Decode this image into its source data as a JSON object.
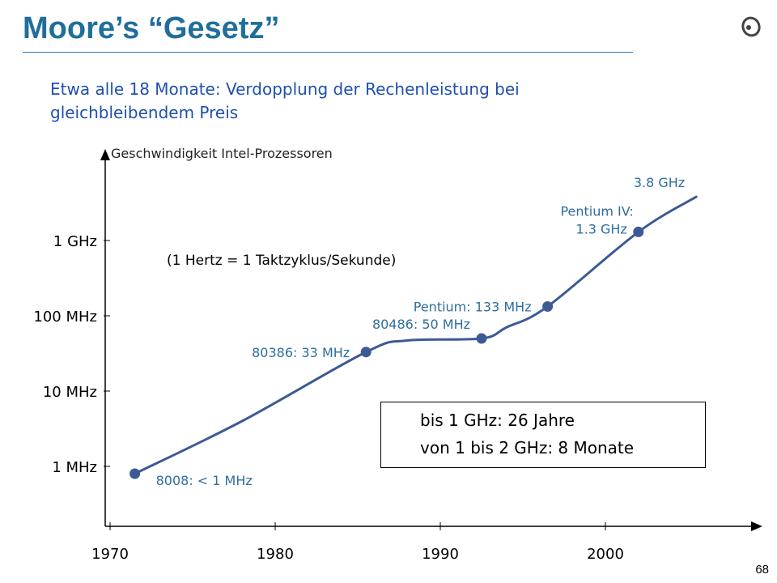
{
  "slide": {
    "title": "Moore’s “Gesetz”",
    "subtitle": "Etwa alle 18 Monate: Verdopplung der Rechenleistung bei gleichbleibendem Preis",
    "note": "(1 Hertz = 1 Taktzyklus/Sekunde)",
    "page_number": "68",
    "info_box": [
      "bis 1 GHz: 26 Jahre",
      "von 1 bis 2 GHz: 8 Monate"
    ],
    "colors": {
      "title": "#1f6f9a",
      "subtitle": "#1f4fb0",
      "curve": "#3c5a96",
      "annotation": "#2e6e9e"
    }
  },
  "chart_data": {
    "type": "line",
    "title": "Geschwindigkeit Intel-Prozessoren",
    "xlabel": "",
    "ylabel": "",
    "x_ticks": [
      "1970",
      "1980",
      "1990",
      "2000"
    ],
    "y_ticks": [
      "1 MHz",
      "10 MHz",
      "100 MHz",
      "1 GHz"
    ],
    "y_scale": "log",
    "xlim": [
      1970,
      2010
    ],
    "ylim_mhz": [
      0.1,
      10000
    ],
    "grid": false,
    "legend": "none",
    "curve": {
      "x": [
        1971.5,
        1978,
        1985.5,
        1988,
        1992.5,
        1994,
        1996.5,
        2002,
        2005.5
      ],
      "y_mhz": [
        0.8,
        4,
        33,
        47,
        50,
        70,
        133,
        1300,
        3800
      ]
    },
    "points": [
      {
        "label": "8008: < 1 MHz",
        "x": 1971.5,
        "y_mhz": 0.8,
        "marker": true,
        "label_pos": "below-right"
      },
      {
        "label": "80386: 33 MHz",
        "x": 1985.5,
        "y_mhz": 33,
        "marker": true,
        "label_pos": "left"
      },
      {
        "label": "80486: 50 MHz",
        "x": 1992.5,
        "y_mhz": 50,
        "marker": true,
        "label_pos": "above-left"
      },
      {
        "label": "Pentium: 133 MHz",
        "x": 1996.5,
        "y_mhz": 133,
        "marker": true,
        "label_pos": "left"
      },
      {
        "label": [
          "Pentium IV:",
          "1.3 GHz"
        ],
        "x": 2002,
        "y_mhz": 1300,
        "marker": true,
        "label_pos": "above-left"
      },
      {
        "label": "3.8 GHz",
        "x": 2005.5,
        "y_mhz": 3800,
        "marker": false,
        "label_pos": "above-left"
      }
    ]
  }
}
